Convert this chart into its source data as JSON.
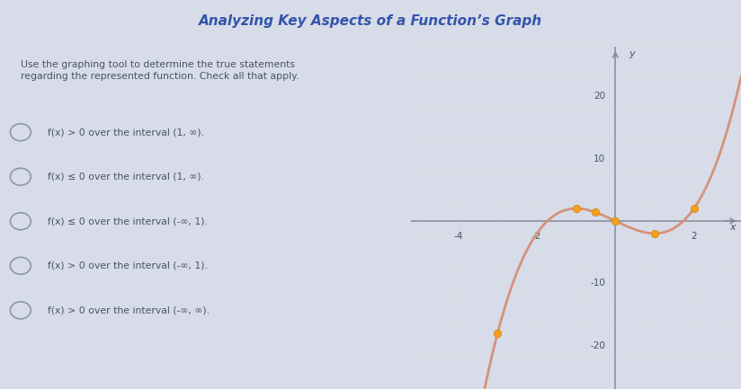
{
  "title": "Analyzing Key Aspects of a Function’s Graph",
  "curve_color": "#D4937A",
  "point_color": "#F5A020",
  "bg_page": "#D8DCE8",
  "bg_left": "#EEF0F5",
  "bg_right": "#F2EDE8",
  "title_bar_color": "#C8D4E8",
  "grid_minor": "#D8D8D8",
  "grid_major": "#C8C8C8",
  "axis_color": "#888899",
  "text_color": "#445566",
  "xlim": [
    -5.2,
    3.2
  ],
  "ylim": [
    -27,
    28
  ],
  "xticks": [
    -4,
    -2,
    2
  ],
  "yticks": [
    -20,
    -10,
    10,
    20
  ],
  "question_text": "Use the graphing tool to determine the true statements\nregarding the represented function. Check all that apply.",
  "options": [
    "f(x) > 0 over the interval (1, ∞).",
    "f(x) ≤ 0 over the interval (1, ∞).",
    "f(x) ≤ 0 over the interval (-∞, 1).",
    "f(x) > 0 over the interval (-∞, 1).",
    "f(x) > 0 over the interval (-∞, ∞)."
  ],
  "marked_x": [
    -3.0,
    -1.0,
    -0.5,
    0.0,
    1.0,
    2.0
  ]
}
